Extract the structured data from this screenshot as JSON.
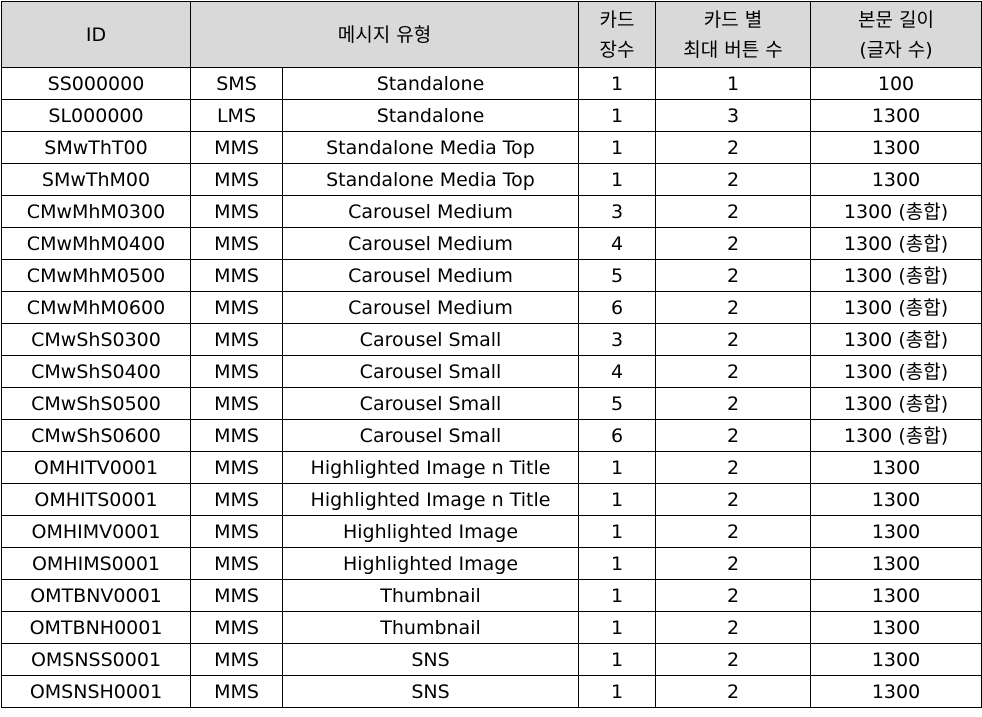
{
  "headers": {
    "id": "ID",
    "message_type": "메시지 유형",
    "card_count": [
      "카드",
      "장수"
    ],
    "max_buttons": [
      "카드 별",
      "최대 버튼 수"
    ],
    "body_length": [
      "본문 길이",
      "(글자 수)"
    ]
  },
  "rows": [
    {
      "id": "SS000000",
      "type": "SMS",
      "name": "Standalone",
      "cards": "1",
      "buttons": "1",
      "length": "100"
    },
    {
      "id": "SL000000",
      "type": "LMS",
      "name": "Standalone",
      "cards": "1",
      "buttons": "3",
      "length": "1300"
    },
    {
      "id": "SMwThT00",
      "type": "MMS",
      "name": "Standalone Media Top",
      "cards": "1",
      "buttons": "2",
      "length": "1300"
    },
    {
      "id": "SMwThM00",
      "type": "MMS",
      "name": "Standalone Media Top",
      "cards": "1",
      "buttons": "2",
      "length": "1300"
    },
    {
      "id": "CMwMhM0300",
      "type": "MMS",
      "name": "Carousel Medium",
      "cards": "3",
      "buttons": "2",
      "length": "1300 (총합)"
    },
    {
      "id": "CMwMhM0400",
      "type": "MMS",
      "name": "Carousel Medium",
      "cards": "4",
      "buttons": "2",
      "length": "1300 (총합)"
    },
    {
      "id": "CMwMhM0500",
      "type": "MMS",
      "name": "Carousel Medium",
      "cards": "5",
      "buttons": "2",
      "length": "1300 (총합)"
    },
    {
      "id": "CMwMhM0600",
      "type": "MMS",
      "name": "Carousel Medium",
      "cards": "6",
      "buttons": "2",
      "length": "1300 (총합)"
    },
    {
      "id": "CMwShS0300",
      "type": "MMS",
      "name": "Carousel Small",
      "cards": "3",
      "buttons": "2",
      "length": "1300 (총합)"
    },
    {
      "id": "CMwShS0400",
      "type": "MMS",
      "name": "Carousel Small",
      "cards": "4",
      "buttons": "2",
      "length": "1300 (총합)"
    },
    {
      "id": "CMwShS0500",
      "type": "MMS",
      "name": "Carousel Small",
      "cards": "5",
      "buttons": "2",
      "length": "1300 (총합)"
    },
    {
      "id": "CMwShS0600",
      "type": "MMS",
      "name": "Carousel Small",
      "cards": "6",
      "buttons": "2",
      "length": "1300 (총합)"
    },
    {
      "id": "OMHITV0001",
      "type": "MMS",
      "name": "Highlighted Image n Title",
      "cards": "1",
      "buttons": "2",
      "length": "1300"
    },
    {
      "id": "OMHITS0001",
      "type": "MMS",
      "name": "Highlighted Image n Title",
      "cards": "1",
      "buttons": "2",
      "length": "1300"
    },
    {
      "id": "OMHIMV0001",
      "type": "MMS",
      "name": "Highlighted Image",
      "cards": "1",
      "buttons": "2",
      "length": "1300"
    },
    {
      "id": "OMHIMS0001",
      "type": "MMS",
      "name": "Highlighted Image",
      "cards": "1",
      "buttons": "2",
      "length": "1300"
    },
    {
      "id": "OMTBNV0001",
      "type": "MMS",
      "name": "Thumbnail",
      "cards": "1",
      "buttons": "2",
      "length": "1300"
    },
    {
      "id": "OMTBNH0001",
      "type": "MMS",
      "name": "Thumbnail",
      "cards": "1",
      "buttons": "2",
      "length": "1300"
    },
    {
      "id": "OMSNSS0001",
      "type": "MMS",
      "name": "SNS",
      "cards": "1",
      "buttons": "2",
      "length": "1300"
    },
    {
      "id": "OMSNSH0001",
      "type": "MMS",
      "name": "SNS",
      "cards": "1",
      "buttons": "2",
      "length": "1300"
    }
  ]
}
